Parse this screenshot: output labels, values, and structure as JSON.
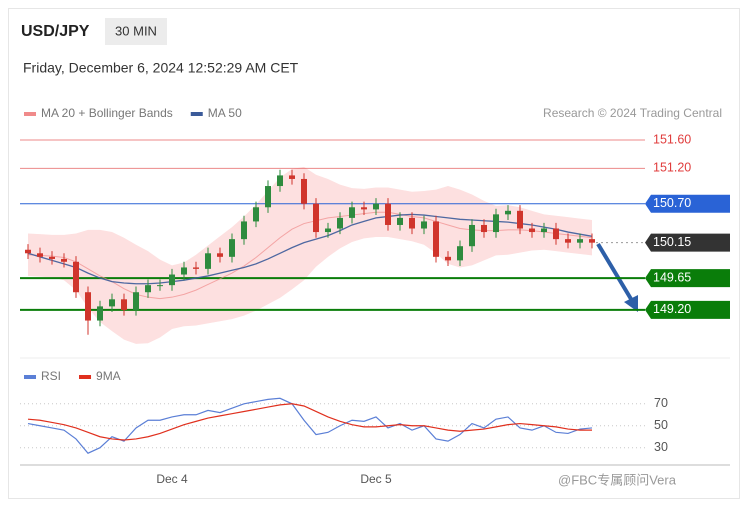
{
  "header": {
    "symbol": "USD/JPY",
    "interval": "30 MIN",
    "datetime": "Friday, December 6, 2024 12:52:29 AM CET"
  },
  "watermark": "@FBC专属顾问Vera",
  "chart_data": [
    {
      "type": "candlestick",
      "note": "Research © 2024 Trading Central",
      "up_color": "#2e8b3e",
      "down_color": "#d0352c",
      "ylim": [
        148.6,
        151.75
      ],
      "open": [
        150.05,
        150.0,
        149.95,
        149.92,
        149.88,
        149.45,
        149.05,
        149.25,
        149.35,
        149.2,
        149.45,
        149.55,
        149.55,
        149.7,
        149.8,
        149.78,
        150.0,
        149.95,
        150.2,
        150.45,
        150.65,
        150.95,
        151.1,
        151.05,
        150.7,
        150.3,
        150.35,
        150.5,
        150.65,
        150.62,
        150.7,
        150.4,
        150.5,
        150.35,
        150.45,
        149.95,
        149.9,
        150.1,
        150.4,
        150.3,
        150.55,
        150.6,
        150.35,
        150.3,
        150.35,
        150.2,
        150.15,
        150.2
      ],
      "high": [
        150.13,
        150.08,
        150.03,
        150.0,
        149.96,
        149.53,
        149.33,
        149.43,
        149.43,
        149.53,
        149.63,
        149.63,
        149.78,
        149.88,
        149.88,
        150.08,
        150.08,
        150.28,
        150.53,
        150.73,
        151.03,
        151.18,
        151.18,
        151.13,
        150.78,
        150.43,
        150.58,
        150.73,
        150.73,
        150.78,
        150.78,
        150.58,
        150.58,
        150.53,
        150.53,
        150.03,
        150.18,
        150.48,
        150.48,
        150.63,
        150.68,
        150.68,
        150.43,
        150.43,
        150.43,
        150.28,
        150.28,
        150.28
      ],
      "low": [
        149.92,
        149.87,
        149.84,
        149.8,
        149.37,
        148.85,
        148.97,
        149.17,
        149.12,
        149.12,
        149.37,
        149.47,
        149.47,
        149.62,
        149.7,
        149.7,
        149.87,
        149.87,
        150.12,
        150.37,
        150.57,
        150.87,
        150.97,
        150.62,
        150.22,
        150.22,
        150.27,
        150.42,
        150.54,
        150.54,
        150.32,
        150.32,
        150.27,
        150.27,
        149.87,
        149.82,
        149.82,
        150.02,
        150.22,
        150.22,
        150.47,
        150.27,
        150.22,
        150.22,
        150.12,
        150.07,
        150.07,
        150.07
      ],
      "close": [
        150.0,
        149.95,
        149.92,
        149.88,
        149.45,
        149.05,
        149.25,
        149.35,
        149.2,
        149.45,
        149.55,
        149.55,
        149.7,
        149.8,
        149.78,
        150.0,
        149.95,
        150.2,
        150.45,
        150.65,
        150.95,
        151.1,
        151.05,
        150.7,
        150.3,
        150.35,
        150.5,
        150.65,
        150.62,
        150.7,
        150.4,
        150.5,
        150.35,
        150.45,
        149.95,
        149.9,
        150.1,
        150.4,
        150.3,
        150.55,
        150.6,
        150.35,
        150.3,
        150.35,
        150.2,
        150.15,
        150.2,
        150.15
      ],
      "series": [
        {
          "name": "MA 20 + Bollinger Bands",
          "color": "#f08a8a",
          "band_color": "#fde0e0",
          "values": [
            149.98,
            149.97,
            149.96,
            149.94,
            149.88,
            149.78,
            149.68,
            149.6,
            149.5,
            149.42,
            149.38,
            149.36,
            149.38,
            149.42,
            149.48,
            149.56,
            149.64,
            149.72,
            149.82,
            149.94,
            150.08,
            150.22,
            150.34,
            150.42,
            150.46,
            150.5,
            150.52,
            150.54,
            150.56,
            150.58,
            150.58,
            150.55,
            150.52,
            150.5,
            150.45,
            150.4,
            150.35,
            150.33,
            150.32,
            150.32,
            150.33,
            150.33,
            150.32,
            150.3,
            150.28,
            150.26,
            150.24,
            150.22
          ],
          "upper": [
            150.28,
            150.27,
            150.26,
            150.26,
            150.28,
            150.33,
            150.33,
            150.3,
            150.22,
            150.12,
            150.03,
            149.91,
            149.83,
            149.87,
            149.98,
            150.11,
            150.24,
            150.37,
            150.52,
            150.69,
            150.88,
            151.07,
            151.19,
            151.22,
            151.11,
            151.05,
            150.97,
            150.92,
            150.91,
            150.93,
            150.93,
            150.9,
            150.87,
            150.88,
            150.9,
            150.95,
            150.9,
            150.83,
            150.74,
            150.67,
            150.68,
            150.65,
            150.6,
            150.55,
            150.53,
            150.51,
            150.49,
            150.47
          ],
          "lower": [
            149.68,
            149.67,
            149.66,
            149.62,
            149.48,
            149.23,
            149.03,
            148.9,
            148.78,
            148.72,
            148.73,
            148.81,
            148.93,
            148.97,
            148.98,
            149.01,
            149.04,
            149.07,
            149.12,
            149.19,
            149.28,
            149.37,
            149.49,
            149.62,
            149.81,
            149.95,
            150.07,
            150.16,
            150.21,
            150.23,
            150.23,
            150.2,
            150.17,
            150.12,
            150.0,
            149.85,
            149.8,
            149.83,
            149.9,
            149.97,
            149.98,
            150.01,
            150.04,
            150.05,
            150.03,
            150.01,
            149.99,
            149.97
          ]
        },
        {
          "name": "MA 50",
          "color": "#3b5b9a",
          "values": [
            150.0,
            149.95,
            149.9,
            149.85,
            149.8,
            149.72,
            149.65,
            149.6,
            149.58,
            149.57,
            149.57,
            149.58,
            149.6,
            149.62,
            149.65,
            149.68,
            149.72,
            149.76,
            149.8,
            149.85,
            149.92,
            150.0,
            150.08,
            150.15,
            150.2,
            150.25,
            150.32,
            150.4,
            150.45,
            150.5,
            150.52,
            150.54,
            150.55,
            150.54,
            150.52,
            150.5,
            150.48,
            150.47,
            150.46,
            150.45,
            150.44,
            150.42,
            150.4,
            150.37,
            150.34,
            150.3,
            150.27,
            150.24
          ]
        }
      ],
      "levels": [
        {
          "value": 151.6,
          "label": "151.60",
          "color": "#e03c3c",
          "boxed": false,
          "dashed": false
        },
        {
          "value": 151.2,
          "label": "151.20",
          "color": "#e03c3c",
          "boxed": false,
          "dashed": false
        },
        {
          "value": 150.7,
          "label": "150.70",
          "color": "#2a63d6",
          "boxed": true,
          "dashed": false
        },
        {
          "value": 150.15,
          "label": "150.15",
          "color": "#333333",
          "boxed": true,
          "dashed": true
        },
        {
          "value": 149.65,
          "label": "149.65",
          "color": "#0a7d0a",
          "boxed": true,
          "dashed": false
        },
        {
          "value": 149.2,
          "label": "149.20",
          "color": "#0a7d0a",
          "boxed": true,
          "dashed": false
        }
      ]
    },
    {
      "type": "line",
      "categories": [
        null,
        null,
        null,
        null,
        null,
        null,
        null,
        null,
        null,
        null,
        null,
        null,
        "Dec 4",
        null,
        null,
        null,
        null,
        null,
        null,
        null,
        null,
        null,
        null,
        null,
        null,
        null,
        null,
        null,
        null,
        "Dec 5",
        null,
        null,
        null,
        null,
        null,
        null,
        null,
        null,
        null,
        null,
        null,
        null,
        null,
        null,
        null,
        null,
        null,
        null
      ],
      "ylim": [
        17,
        78
      ],
      "yticks": [
        30,
        50,
        70
      ],
      "grid": true,
      "series": [
        {
          "name": "RSI",
          "color": "#5b7fd6",
          "values": [
            52,
            50,
            48,
            46,
            38,
            25,
            30,
            40,
            36,
            48,
            55,
            55,
            58,
            60,
            60,
            64,
            62,
            66,
            70,
            72,
            74,
            75,
            70,
            55,
            42,
            44,
            50,
            55,
            54,
            58,
            48,
            52,
            46,
            50,
            38,
            36,
            42,
            52,
            48,
            56,
            58,
            48,
            46,
            50,
            44,
            43,
            47,
            48
          ]
        },
        {
          "name": "9MA",
          "color": "#e0301e",
          "values": [
            56,
            55,
            53,
            51,
            48,
            44,
            40,
            38,
            37,
            38,
            40,
            43,
            47,
            51,
            54,
            57,
            59,
            61,
            63,
            65,
            67,
            69,
            70,
            68,
            63,
            58,
            54,
            51,
            49,
            49,
            50,
            51,
            50,
            50,
            48,
            46,
            45,
            46,
            47,
            49,
            51,
            52,
            51,
            50,
            49,
            47,
            46,
            46
          ]
        }
      ]
    }
  ]
}
